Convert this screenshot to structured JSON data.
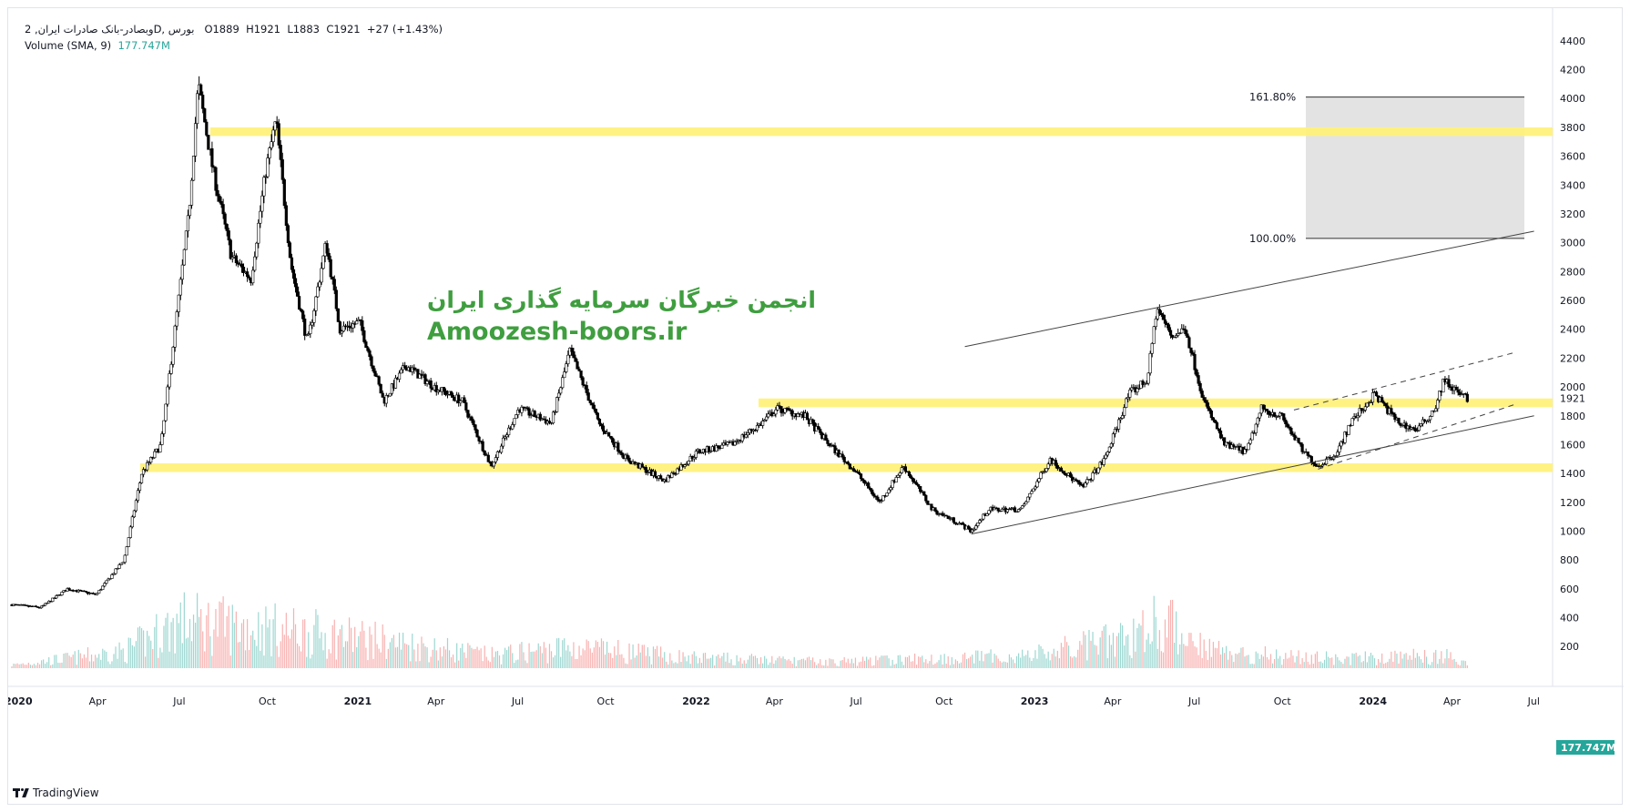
{
  "legend": {
    "symbol_text": "وبصادر-بانک صادرات ایران, 2D, بورس",
    "open": "O1889",
    "high": "H1921",
    "low": "L1883",
    "close": "C1921",
    "change": "+27 (+1.43%)",
    "volume_label": "Volume (SMA, 9)",
    "volume_value": "177.747M"
  },
  "watermark": {
    "persian": "انجمن خبرگان سرمایه گذاری ایران",
    "english": "Amoozesh-boors.ir"
  },
  "brand": "TradingView",
  "colors": {
    "candle": "#000000",
    "volume_up": "#26a69a",
    "volume_down": "#ef5350",
    "zone": "#fff176",
    "watermark": "#3f9e3f",
    "fib_box": "#e0e0e0"
  },
  "chart_data": {
    "type": "candlestick",
    "y_ticks": [
      200,
      400,
      600,
      800,
      1000,
      1200,
      1400,
      1600,
      1800,
      2000,
      2200,
      2400,
      2600,
      2800,
      3000,
      3200,
      3400,
      3600,
      3800,
      4000,
      4200,
      4400
    ],
    "ylim": [
      50,
      4500
    ],
    "x_ticks": [
      "2020",
      "Apr",
      "Jul",
      "Oct",
      "2021",
      "Apr",
      "Jul",
      "Oct",
      "2022",
      "Apr",
      "Jul",
      "Oct",
      "2023",
      "Apr",
      "Jul",
      "Oct",
      "2024",
      "Apr",
      "Jul"
    ],
    "bold_ticks": [
      "2020",
      "2021",
      "2022",
      "2023",
      "2024"
    ],
    "xlim": [
      "2020-01-01",
      "2024-07-20"
    ],
    "last_price_label": "1921",
    "volume_badge": "177.747M",
    "price_path": [
      [
        "2020-01-01",
        490
      ],
      [
        "2020-02-01",
        470
      ],
      [
        "2020-03-01",
        600
      ],
      [
        "2020-04-01",
        560
      ],
      [
        "2020-05-01",
        800
      ],
      [
        "2020-05-20",
        1400
      ],
      [
        "2020-06-10",
        1600
      ],
      [
        "2020-06-25",
        2400
      ],
      [
        "2020-07-10",
        3200
      ],
      [
        "2020-07-20",
        4100
      ],
      [
        "2020-08-05",
        3500
      ],
      [
        "2020-08-25",
        2900
      ],
      [
        "2020-09-15",
        2750
      ],
      [
        "2020-10-01",
        3500
      ],
      [
        "2020-10-12",
        3850
      ],
      [
        "2020-10-28",
        2850
      ],
      [
        "2020-11-15",
        2300
      ],
      [
        "2020-12-05",
        3000
      ],
      [
        "2020-12-20",
        2400
      ],
      [
        "2021-01-10",
        2450
      ],
      [
        "2021-02-05",
        1900
      ],
      [
        "2021-03-01",
        2150
      ],
      [
        "2021-04-01",
        2000
      ],
      [
        "2021-05-01",
        1900
      ],
      [
        "2021-06-01",
        1450
      ],
      [
        "2021-07-01",
        1850
      ],
      [
        "2021-08-05",
        1750
      ],
      [
        "2021-08-25",
        2250
      ],
      [
        "2021-09-25",
        1750
      ],
      [
        "2021-10-25",
        1500
      ],
      [
        "2021-12-05",
        1350
      ],
      [
        "2022-01-10",
        1550
      ],
      [
        "2022-02-15",
        1600
      ],
      [
        "2022-03-20",
        1750
      ],
      [
        "2022-04-05",
        1850
      ],
      [
        "2022-05-05",
        1800
      ],
      [
        "2022-06-01",
        1600
      ],
      [
        "2022-07-01",
        1400
      ],
      [
        "2022-07-25",
        1200
      ],
      [
        "2022-08-20",
        1450
      ],
      [
        "2022-09-20",
        1150
      ],
      [
        "2022-10-20",
        1050
      ],
      [
        "2022-11-01",
        1000
      ],
      [
        "2022-11-20",
        1150
      ],
      [
        "2022-12-25",
        1150
      ],
      [
        "2023-01-25",
        1500
      ],
      [
        "2023-03-01",
        1300
      ],
      [
        "2023-03-25",
        1500
      ],
      [
        "2023-04-20",
        1950
      ],
      [
        "2023-05-10",
        2050
      ],
      [
        "2023-05-20",
        2550
      ],
      [
        "2023-06-05",
        2350
      ],
      [
        "2023-06-20",
        2400
      ],
      [
        "2023-07-10",
        1900
      ],
      [
        "2023-08-01",
        1600
      ],
      [
        "2023-08-25",
        1550
      ],
      [
        "2023-09-10",
        1850
      ],
      [
        "2023-10-01",
        1800
      ],
      [
        "2023-10-25",
        1550
      ],
      [
        "2023-11-10",
        1450
      ],
      [
        "2023-12-01",
        1550
      ],
      [
        "2023-12-15",
        1750
      ],
      [
        "2024-01-10",
        1950
      ],
      [
        "2024-02-05",
        1750
      ],
      [
        "2024-02-25",
        1700
      ],
      [
        "2024-03-15",
        1850
      ],
      [
        "2024-03-25",
        2050
      ],
      [
        "2024-04-10",
        1950
      ],
      [
        "2024-04-20",
        1921
      ]
    ],
    "volume_profile": [
      [
        "2020-01-01",
        30
      ],
      [
        "2020-05-01",
        160
      ],
      [
        "2020-07-01",
        450
      ],
      [
        "2020-10-01",
        380
      ],
      [
        "2021-01-01",
        300
      ],
      [
        "2021-06-01",
        120
      ],
      [
        "2021-08-25",
        200
      ],
      [
        "2022-01-01",
        100
      ],
      [
        "2022-06-01",
        60
      ],
      [
        "2023-01-01",
        120
      ],
      [
        "2023-04-15",
        280
      ],
      [
        "2023-05-20",
        460
      ],
      [
        "2023-08-01",
        150
      ],
      [
        "2023-12-01",
        90
      ],
      [
        "2024-03-25",
        120
      ],
      [
        "2024-04-20",
        60
      ]
    ],
    "zones": [
      {
        "from": 3740,
        "to": 3800
      },
      {
        "from": 1860,
        "to": 1920
      },
      {
        "from": 1410,
        "to": 1470
      }
    ],
    "fibonacci": [
      {
        "label": "161.80%",
        "price": 4010
      },
      {
        "label": "100.00%",
        "price": 3030
      }
    ],
    "trendlines": [
      {
        "style": "solid",
        "from": [
          "2022-10-25",
          2280
        ],
        "to": [
          "2024-06-30",
          3080
        ]
      },
      {
        "style": "solid",
        "from": [
          "2022-11-01",
          980
        ],
        "to": [
          "2024-06-30",
          1800
        ]
      },
      {
        "style": "dashed",
        "from": [
          "2023-10-15",
          1840
        ],
        "to": [
          "2024-06-10",
          2240
        ]
      },
      {
        "style": "dashed",
        "from": [
          "2023-11-10",
          1430
        ],
        "to": [
          "2024-06-10",
          1880
        ]
      }
    ]
  }
}
